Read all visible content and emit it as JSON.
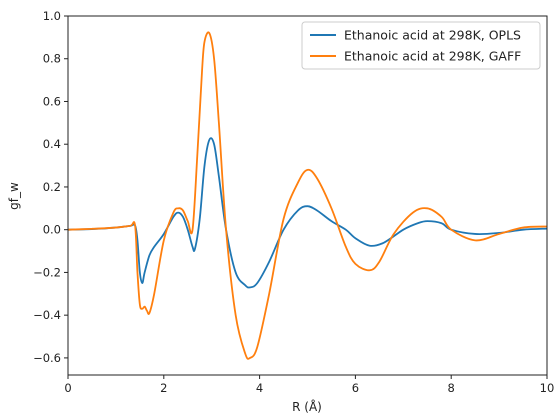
{
  "chart_data": {
    "type": "line",
    "xlabel": "R (Å)",
    "ylabel": "gf_w",
    "xlim": [
      0,
      10
    ],
    "ylim": [
      -0.68,
      1.0
    ],
    "xticks": [
      0,
      2,
      4,
      6,
      8,
      10
    ],
    "yticks": [
      -0.6,
      -0.4,
      -0.2,
      0.0,
      0.2,
      0.4,
      0.6,
      0.8,
      1.0
    ],
    "ytick_labels": [
      "−0.6",
      "−0.4",
      "−0.2",
      "0.0",
      "0.2",
      "0.4",
      "0.6",
      "0.8",
      "1.0"
    ],
    "xtick_labels": [
      "0",
      "2",
      "4",
      "6",
      "8",
      "10"
    ],
    "grid": false,
    "legend_position": "top-right",
    "series": [
      {
        "name": "Ethanoic acid at 298K, OPLS",
        "color": "#1f77b4",
        "x": [
          0,
          0.5,
          1.0,
          1.3,
          1.4,
          1.45,
          1.5,
          1.55,
          1.6,
          1.7,
          1.8,
          2.0,
          2.2,
          2.3,
          2.4,
          2.5,
          2.6,
          2.65,
          2.75,
          2.85,
          2.95,
          3.05,
          3.15,
          3.3,
          3.5,
          3.7,
          3.8,
          3.95,
          4.2,
          4.5,
          4.8,
          5.0,
          5.2,
          5.5,
          5.8,
          6.0,
          6.3,
          6.6,
          7.0,
          7.3,
          7.5,
          7.8,
          8.0,
          8.5,
          9.0,
          9.5,
          10.0
        ],
        "y": [
          0.0,
          0.003,
          0.01,
          0.018,
          0.02,
          -0.05,
          -0.2,
          -0.25,
          -0.2,
          -0.12,
          -0.08,
          -0.02,
          0.06,
          0.08,
          0.06,
          0.0,
          -0.08,
          -0.09,
          0.05,
          0.3,
          0.42,
          0.4,
          0.25,
          0.0,
          -0.2,
          -0.26,
          -0.27,
          -0.25,
          -0.15,
          0.0,
          0.09,
          0.11,
          0.09,
          0.04,
          0.0,
          -0.04,
          -0.075,
          -0.06,
          0.0,
          0.03,
          0.04,
          0.03,
          0.0,
          -0.02,
          -0.015,
          0.0,
          0.005
        ]
      },
      {
        "name": "Ethanoic acid at 298K, GAFF",
        "color": "#ff7f0e",
        "x": [
          0,
          0.5,
          1.0,
          1.3,
          1.4,
          1.45,
          1.5,
          1.55,
          1.6,
          1.65,
          1.7,
          1.8,
          2.0,
          2.2,
          2.3,
          2.4,
          2.5,
          2.6,
          2.7,
          2.8,
          2.85,
          2.95,
          3.05,
          3.15,
          3.3,
          3.5,
          3.7,
          3.8,
          3.95,
          4.2,
          4.5,
          4.8,
          5.0,
          5.2,
          5.5,
          5.8,
          6.0,
          6.3,
          6.5,
          6.8,
          7.2,
          7.5,
          7.8,
          8.0,
          8.5,
          9.0,
          9.5,
          10.0
        ],
        "y": [
          0.0,
          0.004,
          0.01,
          0.018,
          0.02,
          -0.2,
          -0.35,
          -0.37,
          -0.36,
          -0.38,
          -0.39,
          -0.3,
          -0.05,
          0.08,
          0.1,
          0.09,
          0.04,
          0.0,
          0.35,
          0.75,
          0.88,
          0.92,
          0.8,
          0.5,
          0.0,
          -0.4,
          -0.58,
          -0.6,
          -0.55,
          -0.3,
          0.05,
          0.22,
          0.28,
          0.24,
          0.1,
          -0.08,
          -0.16,
          -0.19,
          -0.15,
          -0.02,
          0.08,
          0.1,
          0.06,
          0.0,
          -0.05,
          -0.02,
          0.01,
          0.015
        ]
      }
    ]
  }
}
